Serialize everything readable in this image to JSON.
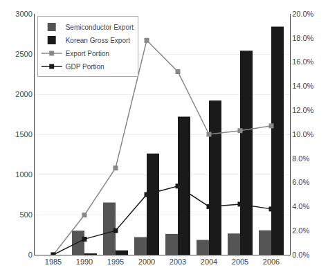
{
  "chart_data": {
    "type": "bar",
    "categories": [
      "1985",
      "1990",
      "1995",
      "2000",
      "2003",
      "2004",
      "2005",
      "2006"
    ],
    "series": [
      {
        "name": "Semiconductor Export",
        "type": "bar",
        "color": "#555555",
        "values": [
          0,
          300,
          650,
          220,
          260,
          185,
          265,
          305
        ]
      },
      {
        "name": "Korean Gross Export",
        "type": "bar",
        "color": "#1a1a1a",
        "values": [
          0,
          15,
          55,
          1260,
          1720,
          1920,
          2540,
          2840
        ]
      },
      {
        "name": "Export Portion",
        "type": "line",
        "axis": "y2",
        "color": "#888888",
        "marker": "square",
        "line_style": "solid",
        "values": [
          0.0,
          0.033,
          0.072,
          0.178,
          0.152,
          0.1,
          0.103,
          0.107
        ]
      },
      {
        "name": "GDP Portion",
        "type": "line",
        "axis": "y2",
        "color": "#1a1a1a",
        "marker": "square",
        "line_style": "solid",
        "values": [
          0.0,
          0.013,
          0.02,
          0.05,
          0.057,
          0.04,
          0.042,
          0.038
        ]
      }
    ],
    "ylim": [
      0,
      3000
    ],
    "yticks": [
      0,
      500,
      1000,
      1500,
      2000,
      2500,
      3000
    ],
    "y2lim": [
      0,
      0.2
    ],
    "y2ticks": [
      {
        "value": 0.0,
        "label": "0.0%"
      },
      {
        "value": 0.02,
        "label": "2.0%"
      },
      {
        "value": 0.04,
        "label": "4.0%"
      },
      {
        "value": 0.06,
        "label": "6.0%"
      },
      {
        "value": 0.08,
        "label": "8.0%"
      },
      {
        "value": 0.1,
        "label": "10.0%"
      },
      {
        "value": 0.12,
        "label": "12.0%"
      },
      {
        "value": 0.14,
        "label": "14.0%"
      },
      {
        "value": 0.16,
        "label": "16.0%"
      },
      {
        "value": 0.18,
        "label": "18.0%"
      },
      {
        "value": 0.2,
        "label": "20.0%"
      }
    ],
    "grid": true,
    "legend": "upper left"
  }
}
